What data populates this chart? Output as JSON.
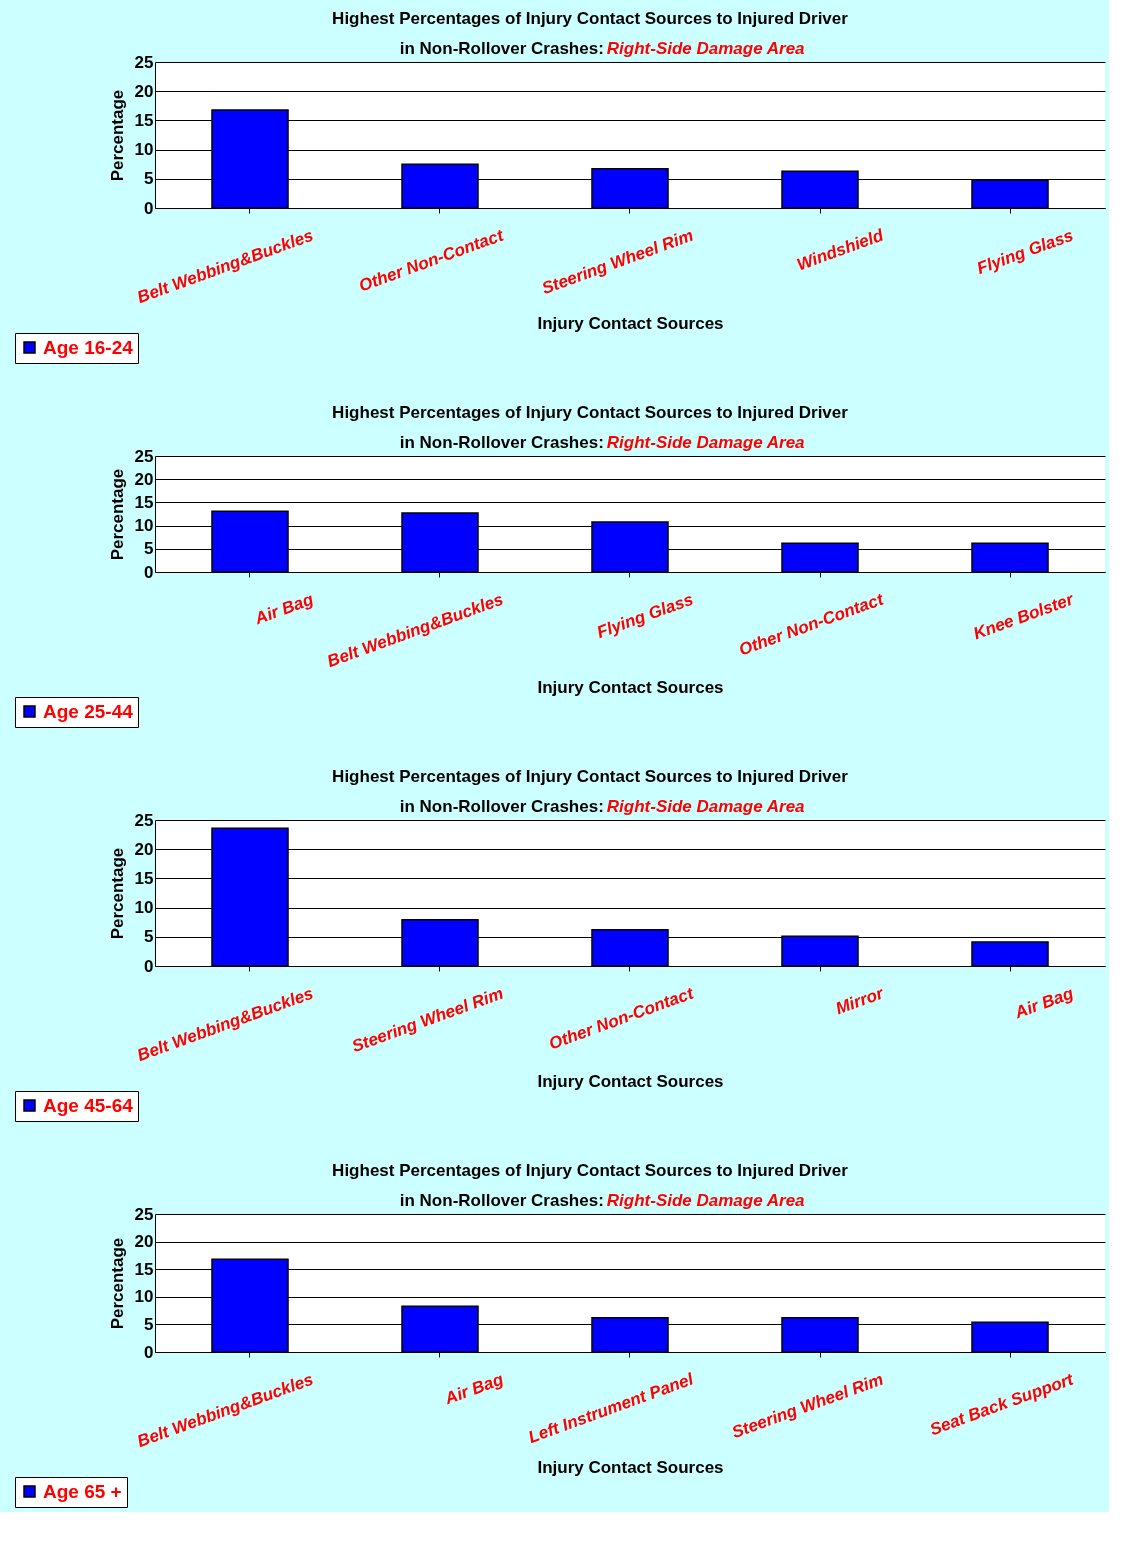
{
  "chart_data": [
    {
      "type": "bar",
      "title": "Highest Percentages of Injury Contact Sources to Injured Driver",
      "subtitle": "in Non-Rollover Crashes: Right-Side Damage Area",
      "xlabel": "Injury Contact Sources",
      "ylabel": "Percentage",
      "categories": [
        "Belt Webbing&Buckles",
        "Other Non-Contact",
        "Steering Wheel Rim",
        "Windshield",
        "Flying Glass"
      ],
      "series": [
        {
          "name": "Age 16-24",
          "color": "#0000ff",
          "values": [
            16.8,
            7.5,
            6.7,
            6.3,
            4.8
          ]
        }
      ],
      "ylim": [
        0,
        25
      ],
      "yticks": [
        0,
        5,
        10,
        15,
        20,
        25
      ],
      "grid": "y",
      "legend": "bottom left"
    },
    {
      "type": "bar",
      "title": "Highest Percentages of Injury Contact Sources to Injured Driver",
      "subtitle": "in Non-Rollover Crashes: Right-Side Damage Area",
      "xlabel": "Injury Contact Sources",
      "ylabel": "Percentage",
      "categories": [
        "Air Bag",
        "Belt Webbing&Buckles",
        "Flying Glass",
        "Other Non-Contact",
        "Knee Bolster"
      ],
      "series": [
        {
          "name": "Age 25-44",
          "color": "#0000ff",
          "values": [
            13.1,
            12.7,
            10.8,
            6.2,
            6.2
          ]
        }
      ],
      "ylim": [
        0,
        25
      ],
      "yticks": [
        0,
        5,
        10,
        15,
        20,
        25
      ],
      "grid": "y",
      "legend": "bottom left"
    },
    {
      "type": "bar",
      "title": "Highest Percentages of Injury Contact Sources to Injured Driver",
      "subtitle": "in Non-Rollover Crashes: Right-Side Damage Area",
      "xlabel": "Injury Contact Sources",
      "ylabel": "Percentage",
      "categories": [
        "Belt Webbing&Buckles",
        "Steering Wheel Rim",
        "Other Non-Contact",
        "Mirror",
        "Air Bag"
      ],
      "series": [
        {
          "name": "Age 45-64",
          "color": "#0000ff",
          "values": [
            23.6,
            7.9,
            6.2,
            5.1,
            4.1
          ]
        }
      ],
      "ylim": [
        0,
        25
      ],
      "yticks": [
        0,
        5,
        10,
        15,
        20,
        25
      ],
      "grid": "y",
      "legend": "bottom left"
    },
    {
      "type": "bar",
      "title": "Highest Percentages of Injury Contact Sources to Injured Driver",
      "subtitle": "in Non-Rollover Crashes: Right-Side Damage Area",
      "xlabel": "Injury Contact Sources",
      "ylabel": "Percentage",
      "categories": [
        "Belt Webbing&Buckles",
        "Air Bag",
        "Left Instrument Panel",
        "Steering Wheel Rim",
        "Seat Back Support"
      ],
      "series": [
        {
          "name": "Age 65 +",
          "color": "#0000ff",
          "values": [
            16.8,
            8.3,
            6.2,
            6.2,
            5.4
          ]
        }
      ],
      "ylim": [
        0,
        25
      ],
      "yticks": [
        0,
        5,
        10,
        15,
        20,
        25
      ],
      "grid": "y",
      "legend": "bottom left"
    }
  ]
}
